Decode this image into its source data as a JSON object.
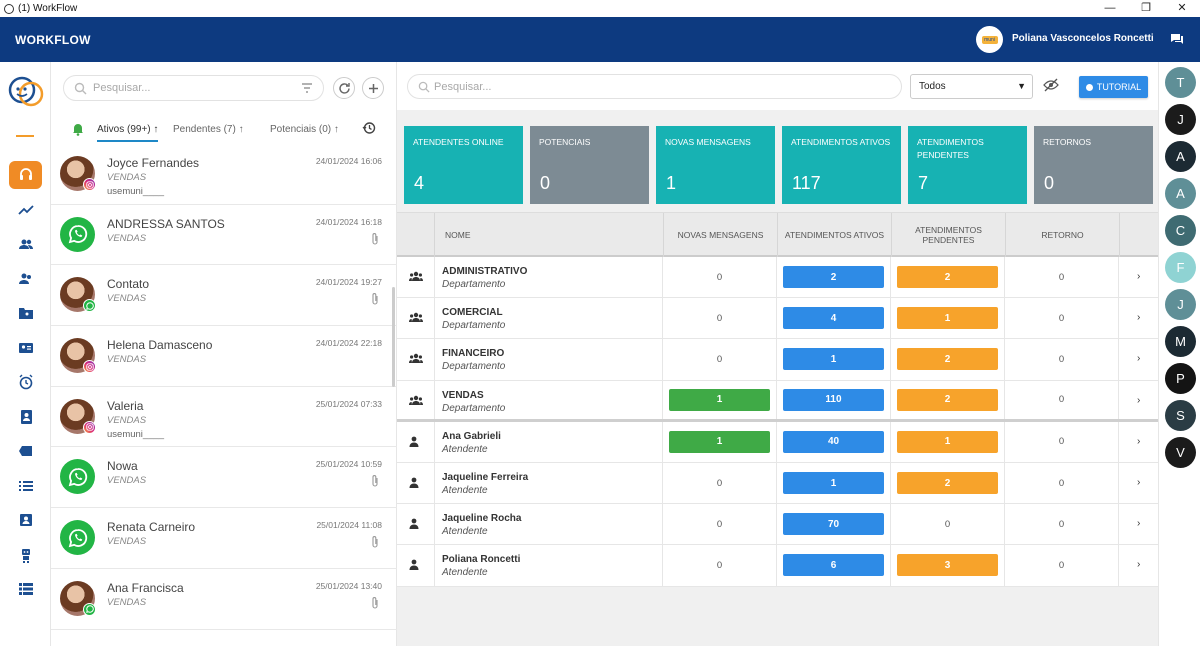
{
  "window": {
    "title": "(1) WorkFlow",
    "controls": [
      "—",
      "❐",
      "✕"
    ]
  },
  "header": {
    "brand": "WORKFLOW",
    "user_name": "Poliana Vasconcelos Roncetti",
    "avatar_text": "muni"
  },
  "chats": {
    "search_placeholder": "Pesquisar...",
    "tabs": [
      {
        "label": "Ativos (99+)",
        "active": true
      },
      {
        "label": "Pendentes (7)",
        "active": false
      },
      {
        "label": "Potenciais (0)",
        "active": false
      }
    ],
    "items": [
      {
        "name": "Joyce Fernandes",
        "dept": "VENDAS",
        "msg": "usemuni____",
        "time": "24/01/2024 16:06",
        "avatar": "photo",
        "badge": "instagram",
        "clip": false
      },
      {
        "name": "ANDRESSA SANTOS",
        "dept": "VENDAS",
        "msg": "",
        "time": "24/01/2024 16:18",
        "avatar": "whatsapp",
        "badge": "",
        "clip": true
      },
      {
        "name": "Contato",
        "dept": "VENDAS",
        "msg": "",
        "time": "24/01/2024 19:27",
        "avatar": "photo",
        "badge": "whatsapp",
        "clip": true
      },
      {
        "name": "Helena Damasceno",
        "dept": "VENDAS",
        "msg": "",
        "time": "24/01/2024 22:18",
        "avatar": "photo",
        "badge": "instagram",
        "clip": false
      },
      {
        "name": "Valeria",
        "dept": "VENDAS",
        "msg": "usemuni____",
        "time": "25/01/2024 07:33",
        "avatar": "photo",
        "badge": "instagram",
        "clip": false
      },
      {
        "name": "Nowa",
        "dept": "VENDAS",
        "msg": "",
        "time": "25/01/2024 10:59",
        "avatar": "whatsapp",
        "badge": "",
        "clip": true
      },
      {
        "name": "Renata Carneiro",
        "dept": "VENDAS",
        "msg": "",
        "time": "25/01/2024 11:08",
        "avatar": "whatsapp",
        "badge": "",
        "clip": true
      },
      {
        "name": "Ana Francisca",
        "dept": "VENDAS",
        "msg": "",
        "time": "25/01/2024 13:40",
        "avatar": "photo",
        "badge": "whatsapp",
        "clip": true
      }
    ]
  },
  "main": {
    "search_placeholder": "Pesquisar...",
    "filter_value": "Todos",
    "tutorial_label": "TUTORIAL",
    "cards": [
      {
        "label": "ATENDENTES ONLINE",
        "value": "4",
        "color": "#17b2b3"
      },
      {
        "label": "POTENCIAIS",
        "value": "0",
        "color": "#7d8b94"
      },
      {
        "label": "NOVAS MENSAGENS",
        "value": "1",
        "color": "#17b2b3"
      },
      {
        "label": "ATENDIMENTOS ATIVOS",
        "value": "117",
        "color": "#17b2b3"
      },
      {
        "label": "ATENDIMENTOS PENDENTES",
        "value": "7",
        "color": "#17b2b3"
      },
      {
        "label": "RETORNOS",
        "value": "0",
        "color": "#7d8b94"
      }
    ],
    "table": {
      "headers": [
        "NOME",
        "NOVAS MENSAGENS",
        "ATENDIMENTOS ATIVOS",
        "ATENDIMENTOS PENDENTES",
        "RETORNO"
      ],
      "rows": [
        {
          "type": "group",
          "name": "ADMINISTRATIVO",
          "sub": "Departamento",
          "novas": "0",
          "ativos": "2",
          "pendentes": "2",
          "retorno": "0"
        },
        {
          "type": "group",
          "name": "COMERCIAL",
          "sub": "Departamento",
          "novas": "0",
          "ativos": "4",
          "pendentes": "1",
          "retorno": "0"
        },
        {
          "type": "group",
          "name": "FINANCEIRO",
          "sub": "Departamento",
          "novas": "0",
          "ativos": "1",
          "pendentes": "2",
          "retorno": "0"
        },
        {
          "type": "group",
          "name": "VENDAS",
          "sub": "Departamento",
          "novas": "1",
          "ativos": "110",
          "pendentes": "2",
          "retorno": "0"
        },
        {
          "type": "person",
          "name": "Ana Gabrieli",
          "sub": "Atendente",
          "novas": "1",
          "ativos": "40",
          "pendentes": "1",
          "retorno": "0"
        },
        {
          "type": "person",
          "name": "Jaqueline Ferreira",
          "sub": "Atendente",
          "novas": "0",
          "ativos": "1",
          "pendentes": "2",
          "retorno": "0"
        },
        {
          "type": "person",
          "name": "Jaqueline Rocha",
          "sub": "Atendente",
          "novas": "0",
          "ativos": "70",
          "pendentes": "0",
          "retorno": "0"
        },
        {
          "type": "person",
          "name": "Poliana Roncetti",
          "sub": "Atendente",
          "novas": "0",
          "ativos": "6",
          "pendentes": "3",
          "retorno": "0"
        }
      ]
    }
  },
  "contacts": [
    {
      "initial": "T",
      "color": "#5f8f97"
    },
    {
      "initial": "J",
      "color": "#1b1b1b"
    },
    {
      "initial": "A",
      "color": "#1c2a33"
    },
    {
      "initial": "A",
      "color": "#5f8f97"
    },
    {
      "initial": "C",
      "color": "#3f6b72"
    },
    {
      "initial": "F",
      "color": "#8fd3d3"
    },
    {
      "initial": "J",
      "color": "#5f8f97"
    },
    {
      "initial": "M",
      "color": "#1c2a33"
    },
    {
      "initial": "P",
      "color": "#141414"
    },
    {
      "initial": "S",
      "color": "#2a3c44"
    },
    {
      "initial": "V",
      "color": "#1b1b1b"
    }
  ]
}
